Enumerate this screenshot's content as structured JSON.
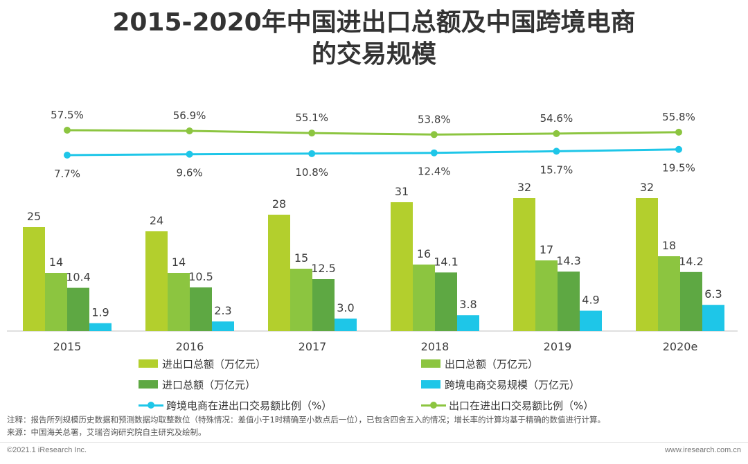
{
  "title_line1": "2015-2020年中国进出口总额及中国跨境电商",
  "title_line2": "的交易规模",
  "colors": {
    "total": "#b3cf2d",
    "export": "#8cc540",
    "import": "#5ea843",
    "ecommerce": "#1ec6e8",
    "line_ecom_ratio": "#1ec6e8",
    "line_export_ratio": "#8cc540"
  },
  "chart_data": {
    "type": "bar",
    "title": "2015-2020年中国进出口总额及中国跨境电商的交易规模",
    "categories": [
      "2015",
      "2016",
      "2017",
      "2018",
      "2019",
      "2020e"
    ],
    "series": [
      {
        "name": "进出口总额（万亿元）",
        "key": "total",
        "values": [
          25,
          24,
          28,
          31,
          32,
          32
        ],
        "labels": [
          "25",
          "24",
          "28",
          "31",
          "32",
          "32"
        ]
      },
      {
        "name": "出口总额（万亿元）",
        "key": "export",
        "values": [
          14,
          14,
          15,
          16,
          17,
          18
        ],
        "labels": [
          "14",
          "14",
          "15",
          "16",
          "17",
          "18"
        ]
      },
      {
        "name": "进口总额（万亿元）",
        "key": "import",
        "values": [
          10.4,
          10.5,
          12.5,
          14.1,
          14.3,
          14.2
        ],
        "labels": [
          "10.4",
          "10.5",
          "12.5",
          "14.1",
          "14.3",
          "14.2"
        ]
      },
      {
        "name": "跨境电商交易规模（万亿元）",
        "key": "ecommerce",
        "values": [
          1.9,
          2.3,
          3.0,
          3.8,
          4.9,
          6.3
        ],
        "labels": [
          "1.9",
          "2.3",
          "3.0",
          "3.8",
          "4.9",
          "6.3"
        ]
      }
    ],
    "lines": [
      {
        "name": "跨境电商在进出口交易额比例（%）",
        "key": "line_ecom_ratio",
        "values": [
          7.7,
          9.6,
          10.8,
          12.4,
          15.7,
          19.5
        ],
        "labels": [
          "7.7%",
          "9.6%",
          "10.8%",
          "12.4%",
          "15.7%",
          "19.5%"
        ]
      },
      {
        "name": "出口在进出口交易额比例（%）",
        "key": "line_export_ratio",
        "values": [
          57.5,
          56.9,
          55.1,
          53.8,
          54.6,
          55.8
        ],
        "labels": [
          "57.5%",
          "56.9%",
          "55.1%",
          "53.8%",
          "54.6%",
          "55.8%"
        ]
      }
    ],
    "ylim": [
      0,
      32
    ],
    "legend_position": "bottom"
  },
  "legend": [
    {
      "label": "进出口总额（万亿元）",
      "key": "total",
      "kind": "bar"
    },
    {
      "label": "出口总额（万亿元）",
      "key": "export",
      "kind": "bar"
    },
    {
      "label": "进口总额（万亿元）",
      "key": "import",
      "kind": "bar"
    },
    {
      "label": "跨境电商交易规模（万亿元）",
      "key": "ecommerce",
      "kind": "bar"
    },
    {
      "label": "跨境电商在进出口交易额比例（%）",
      "key": "line_ecom_ratio",
      "kind": "line"
    },
    {
      "label": "出口在进出口交易额比例（%）",
      "key": "line_export_ratio",
      "kind": "line"
    }
  ],
  "footnote_notes": "注释：报告所列规模历史数据和预测数据均取整数位（特殊情况：差值小于1时精确至小数点后一位），已包含四舍五入的情况；增长率的计算均基于精确的数值进行计算。",
  "footnote_source": "来源：中国海关总署，艾瑞咨询研究院自主研究及绘制。",
  "copyright": "©2021.1 iResearch Inc.",
  "website": "www.iresearch.com.cn"
}
